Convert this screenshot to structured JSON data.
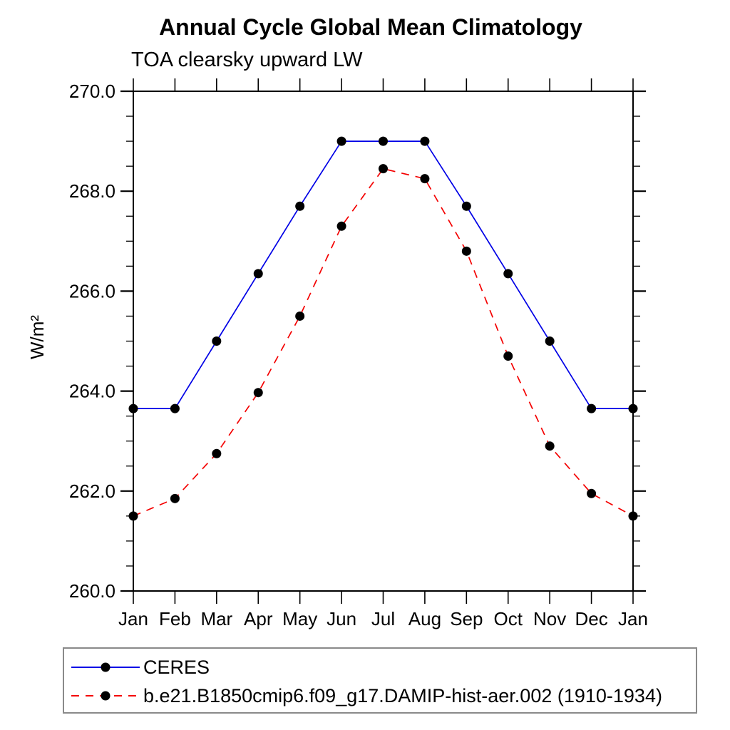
{
  "chart_data": {
    "type": "line",
    "title": "Annual Cycle Global Mean Climatology",
    "subtitle": "TOA clearsky upward LW",
    "ylabel": "W/m²",
    "xlabel": "",
    "categories": [
      "Jan",
      "Feb",
      "Mar",
      "Apr",
      "May",
      "Jun",
      "Jul",
      "Aug",
      "Sep",
      "Oct",
      "Nov",
      "Dec",
      "Jan"
    ],
    "y_axis": {
      "min": 260.0,
      "max": 270.0,
      "major_step": 2.0,
      "minor_step": 0.5,
      "tick_labels": [
        "260.0",
        "262.0",
        "264.0",
        "266.0",
        "268.0",
        "270.0"
      ]
    },
    "grid": false,
    "legend_position": "bottom-left",
    "series": [
      {
        "name": "CERES",
        "color": "#0000e6",
        "line_style": "solid",
        "marker": "filled-circle",
        "marker_color": "#000000",
        "values": [
          263.65,
          263.65,
          265.0,
          266.35,
          267.7,
          269.0,
          269.0,
          269.0,
          267.7,
          266.35,
          265.0,
          263.65,
          263.65
        ]
      },
      {
        "name": "b.e21.B1850cmip6.f09_g17.DAMIP-hist-aer.002 (1910-1934)",
        "color": "#f40000",
        "line_style": "dashed",
        "marker": "filled-circle",
        "marker_color": "#000000",
        "values": [
          261.5,
          261.85,
          262.75,
          263.97,
          265.5,
          267.3,
          268.45,
          268.25,
          266.8,
          264.7,
          262.9,
          261.95,
          261.5
        ]
      }
    ]
  }
}
